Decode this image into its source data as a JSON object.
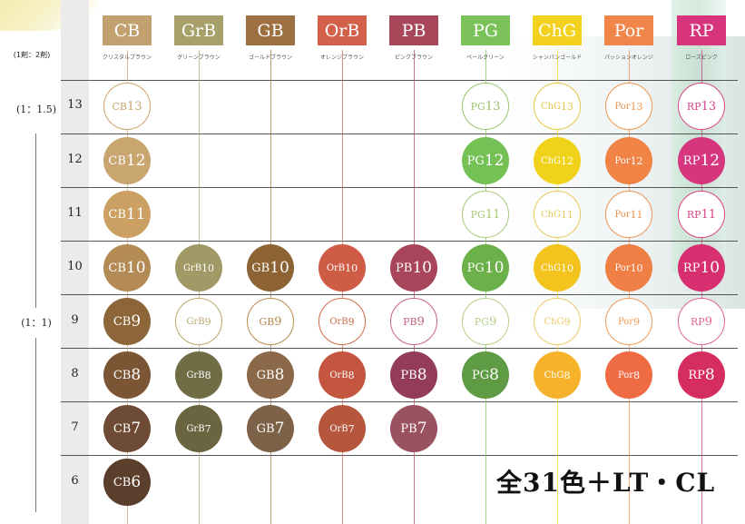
{
  "ratio_header": "(1剤：2剤)",
  "ratio_1_1_5": "(1：1.5)",
  "ratio_1_1": "(1：1)",
  "total_label": "全31色＋LT・CL",
  "rows": [
    "13",
    "12",
    "11",
    "10",
    "9",
    "8",
    "7",
    "6"
  ],
  "columns": [
    {
      "code": "CB",
      "name": "クリスタルブラウン",
      "color": "#c2a070",
      "levels": [
        "13",
        "12",
        "11",
        "10",
        "9",
        "8",
        "7",
        "6"
      ],
      "colors": {
        "12": "#c9a56f",
        "11": "#cba062",
        "10": "#b58b55",
        "9": "#8c6638",
        "8": "#7c5535",
        "7": "#6d4a33",
        "6": "#5c3e2c"
      },
      "outline": {
        "13": "#c9a46a"
      }
    },
    {
      "code": "GrB",
      "name": "グリーンブラウン",
      "color": "#a8a06a",
      "levels": [
        "10",
        "9",
        "8",
        "7"
      ],
      "colors": {
        "10": "#a19a67",
        "8": "#706c45",
        "7": "#6a6440"
      },
      "outline": {
        "9": "#b9a86a"
      }
    },
    {
      "code": "GB",
      "name": "ゴールドブラウン",
      "color": "#9c7040",
      "levels": [
        "10",
        "9",
        "8",
        "7"
      ],
      "colors": {
        "10": "#8e6333",
        "8": "#8a6848",
        "7": "#7d6248"
      },
      "outline": {
        "9": "#b88a4c"
      }
    },
    {
      "code": "OrB",
      "name": "オレンジブラウン",
      "color": "#d2604a",
      "levels": [
        "10",
        "9",
        "8",
        "7"
      ],
      "colors": {
        "10": "#cf5d45",
        "8": "#c4553f",
        "7": "#b5563d"
      },
      "outline": {
        "9": "#cd6b49"
      }
    },
    {
      "code": "PB",
      "name": "ピンクブラウン",
      "color": "#a8475a",
      "levels": [
        "10",
        "9",
        "8",
        "7"
      ],
      "colors": {
        "10": "#a8455a",
        "8": "#923b5a",
        "7": "#9a5260"
      },
      "outline": {
        "9": "#c9647a"
      }
    },
    {
      "code": "PG",
      "name": "ペールグリーン",
      "color": "#7bc25a",
      "levels": [
        "13",
        "12",
        "11",
        "10",
        "9",
        "8"
      ],
      "colors": {
        "12": "#75c155",
        "10": "#6cb04a",
        "8": "#5f9a45"
      },
      "outline": {
        "13": "#9ac36c",
        "11": "#a8c97a",
        "9": "#b4d08a"
      }
    },
    {
      "code": "ChG",
      "name": "シャンパンゴールド",
      "color": "#f2d21e",
      "levels": [
        "13",
        "12",
        "11",
        "10",
        "9",
        "8"
      ],
      "colors": {
        "12": "#f1d21a",
        "10": "#f3c41d",
        "8": "#f5b22a"
      },
      "outline": {
        "13": "#e6c546",
        "11": "#e8c85a",
        "9": "#ecc86a"
      }
    },
    {
      "code": "Por",
      "name": "パッションオレンジ",
      "color": "#f0864a",
      "levels": [
        "13",
        "12",
        "11",
        "10",
        "9",
        "8"
      ],
      "colors": {
        "12": "#f08345",
        "10": "#ef7f45",
        "8": "#ef6b43"
      },
      "outline": {
        "13": "#f0964f",
        "11": "#ef9250",
        "9": "#f09a55"
      }
    },
    {
      "code": "RP",
      "name": "ローズピンク",
      "color": "#d6357e",
      "levels": [
        "13",
        "12",
        "11",
        "10",
        "9",
        "8"
      ],
      "colors": {
        "12": "#d6367e",
        "10": "#d72f70",
        "8": "#d62d60"
      },
      "outline": {
        "13": "#d6468a",
        "11": "#d84685",
        "9": "#e06495"
      }
    }
  ]
}
